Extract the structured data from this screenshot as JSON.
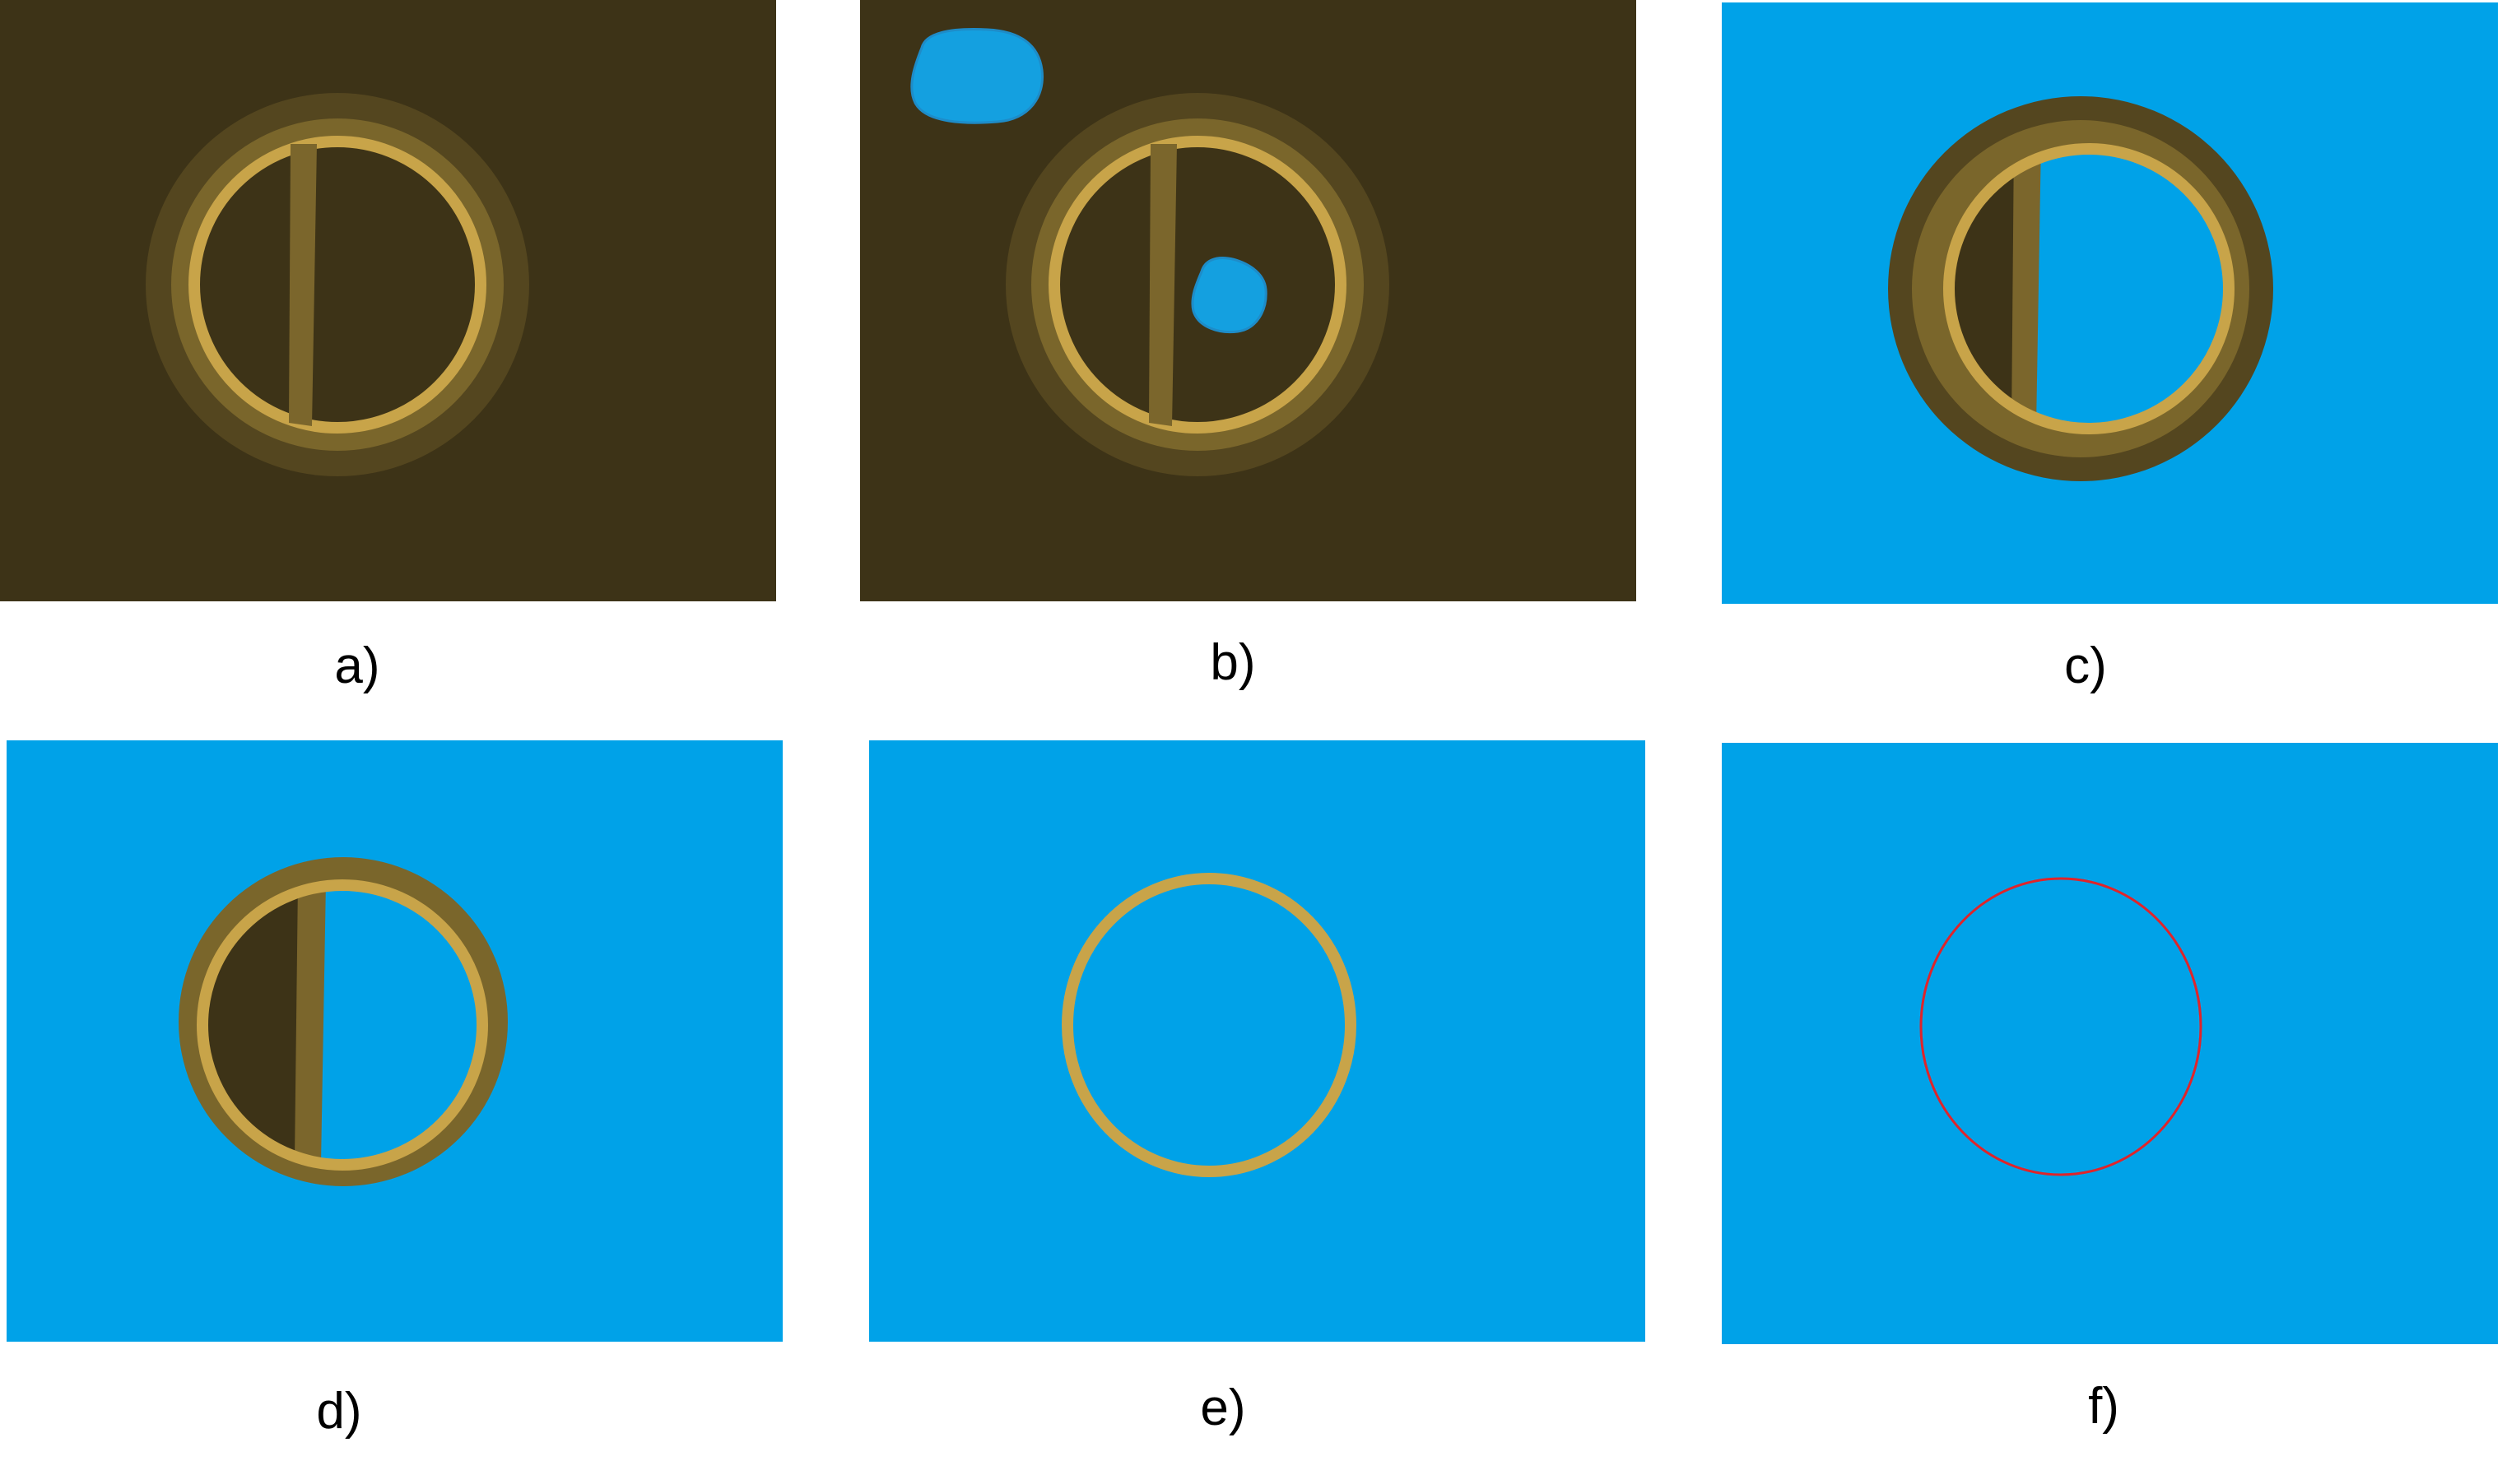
{
  "figure": {
    "panels": [
      {
        "id": "a",
        "label": "a)"
      },
      {
        "id": "b",
        "label": "b)"
      },
      {
        "id": "c",
        "label": "c)"
      },
      {
        "id": "d",
        "label": "d)"
      },
      {
        "id": "e",
        "label": "e)"
      },
      {
        "id": "f",
        "label": "f)"
      }
    ]
  },
  "colors": {
    "dark_background": "#3D3317",
    "blue_background": "#00A2E8",
    "outer_halo": "#54461F",
    "mid_ring": "#7A662B",
    "gold_ring": "#C8A449",
    "rod": "#7B662C",
    "red_circle": "#E0242A",
    "label_text": "#000000"
  }
}
